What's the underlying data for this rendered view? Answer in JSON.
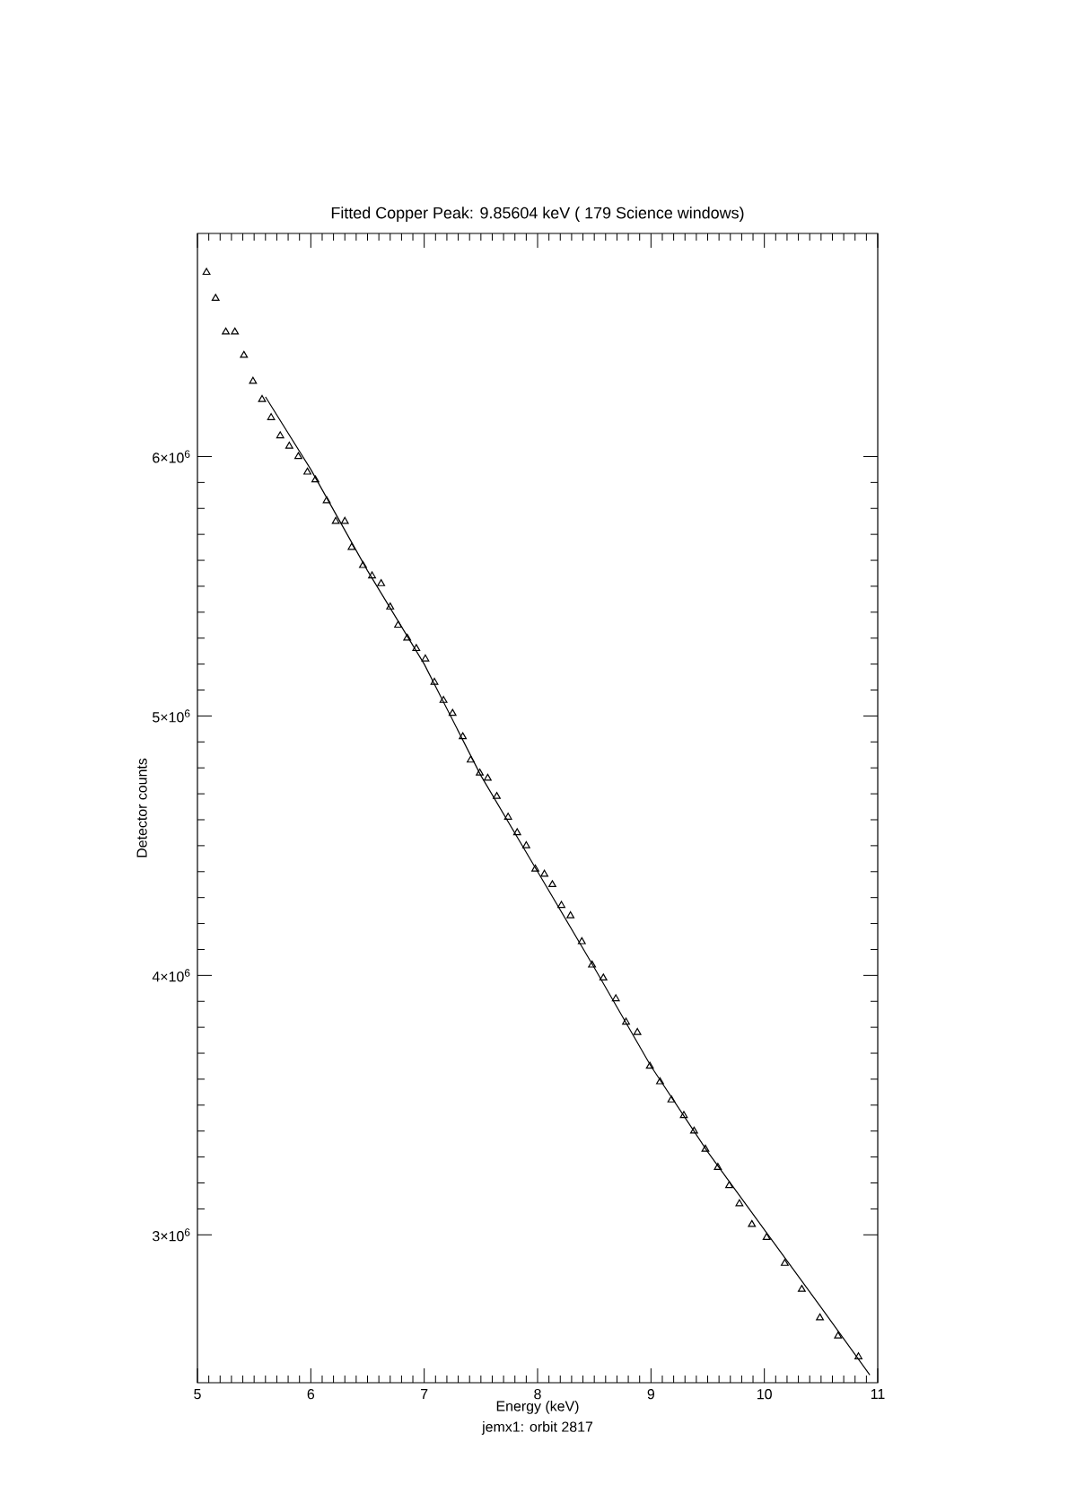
{
  "chart_data": {
    "type": "scatter",
    "title": "Fitted Copper Peak: 9.85604 keV ( 179 Science windows)",
    "xlabel": "Energy (keV)",
    "ylabel": "Detector counts",
    "annotations": [
      "jemx1: orbit 2817"
    ],
    "xlim": [
      5,
      11
    ],
    "ylim": [
      2430000,
      6860000
    ],
    "xticks": [
      5,
      6,
      7,
      8,
      9,
      10,
      11
    ],
    "yticks": [
      {
        "value": 3000000,
        "label": "3×10$^{6}$"
      },
      {
        "value": 4000000,
        "label": "4×10$^{6}$"
      },
      {
        "value": 5000000,
        "label": "5×10$^{6}$"
      },
      {
        "value": 6000000,
        "label": "6×10$^{6}$"
      }
    ],
    "series": [
      {
        "marker": "triangle",
        "color": "#000000",
        "x": [
          5.08,
          5.16,
          5.25,
          5.33,
          5.41,
          5.49,
          5.57,
          5.65,
          5.73,
          5.81,
          5.89,
          5.97,
          6.04,
          6.14,
          6.22,
          6.3,
          6.36,
          6.46,
          6.54,
          6.62,
          6.7,
          6.77,
          6.85,
          6.93,
          7.01,
          7.09,
          7.17,
          7.25,
          7.34,
          7.41,
          7.49,
          7.56,
          7.64,
          7.74,
          7.82,
          7.9,
          7.98,
          8.06,
          8.13,
          8.21,
          8.29,
          8.39,
          8.48,
          8.58,
          8.69,
          8.78,
          8.88,
          8.99,
          9.08,
          9.18,
          9.29,
          9.38,
          9.48,
          9.59,
          9.69,
          9.78,
          9.89,
          10.02,
          10.18,
          10.33,
          10.49,
          10.65,
          10.83
        ],
        "values": [
          6710000,
          6610000,
          6480000,
          6480000,
          6390000,
          6290000,
          6220000,
          6150000,
          6080000,
          6040000,
          6000000,
          5940000,
          5910000,
          5830000,
          5750000,
          5750000,
          5650000,
          5580000,
          5540000,
          5510000,
          5420000,
          5350000,
          5300000,
          5260000,
          5220000,
          5130000,
          5060000,
          5010000,
          4920000,
          4830000,
          4780000,
          4760000,
          4690000,
          4610000,
          4550000,
          4500000,
          4410000,
          4390000,
          4350000,
          4270000,
          4230000,
          4130000,
          4040000,
          3990000,
          3910000,
          3820000,
          3780000,
          3650000,
          3590000,
          3520000,
          3460000,
          3400000,
          3330000,
          3260000,
          3190000,
          3120000,
          3040000,
          2990000,
          2890000,
          2790000,
          2680000,
          2610000,
          2530000
        ]
      },
      {
        "type": "line",
        "color": "#000000",
        "x": [
          5.6,
          6.0,
          6.5,
          7.0,
          7.5,
          8.0,
          8.5,
          9.0,
          9.5,
          10.0,
          10.5,
          10.93
        ],
        "values": [
          6230000,
          5950000,
          5560000,
          5200000,
          4770000,
          4400000,
          4030000,
          3650000,
          3320000,
          3020000,
          2720000,
          2460000
        ]
      }
    ]
  }
}
